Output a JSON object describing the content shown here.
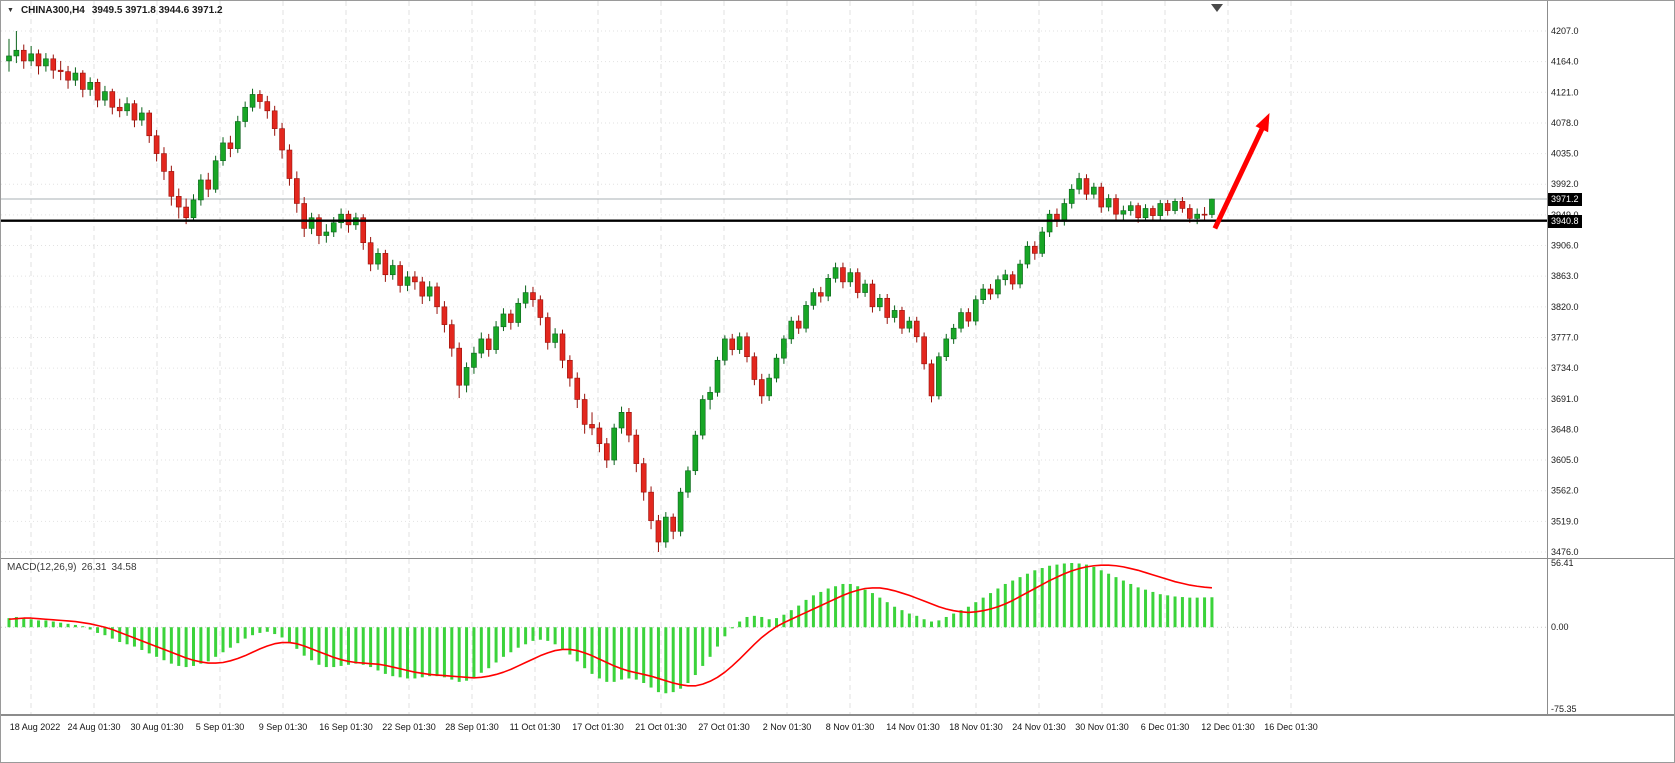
{
  "header": {
    "collapse_marker": "▼",
    "symbol_label": "CHINA300,H4",
    "ohlc_text": "3949.5 3971.8 3944.6 3971.2"
  },
  "colors": {
    "bull": "#18a626",
    "bear": "#e3271e",
    "bull_edge": "#0b631b",
    "bear_edge": "#971009",
    "macd_hist": "#3bd33b",
    "macd_signal": "#ff0000",
    "arrow": "#ff0000",
    "hline_black": "#000000",
    "hline_gray": "#a9b0b6",
    "grid": "#e2e2e2",
    "axis_text": "#1a1a1a",
    "tag_bg": "#000000",
    "tag_text": "#ffffff"
  },
  "chart_data": {
    "type": "candlestick",
    "symbol": "CHINA300",
    "timeframe": "H4",
    "ylim": [
      3476.0,
      4207.0
    ],
    "y_ticks": [
      4207.0,
      4164.0,
      4121.0,
      4078.0,
      4035.0,
      3992.0,
      3949.0,
      3906.0,
      3863.0,
      3820.0,
      3777.0,
      3734.0,
      3691.0,
      3648.0,
      3605.0,
      3562.0,
      3519.0,
      3476.0
    ],
    "x_labels": [
      "18 Aug 2022",
      "24 Aug 01:30",
      "30 Aug 01:30",
      "5 Sep 01:30",
      "9 Sep 01:30",
      "16 Sep 01:30",
      "22 Sep 01:30",
      "28 Sep 01:30",
      "11 Oct 01:30",
      "17 Oct 01:30",
      "21 Oct 01:30",
      "27 Oct 01:30",
      "2 Nov 01:30",
      "8 Nov 01:30",
      "14 Nov 01:30",
      "18 Nov 01:30",
      "24 Nov 01:30",
      "30 Nov 01:30",
      "6 Dec 01:30",
      "12 Dec 01:30",
      "16 Dec 01:30"
    ],
    "price_lines": [
      {
        "price": 3971.2,
        "label": "3971.2",
        "style": "thin-gray"
      },
      {
        "price": 3940.8,
        "label": "3940.8",
        "style": "thick-black"
      }
    ],
    "annotation_arrow": {
      "from_bar": 163.4,
      "from_price": 3930,
      "to_bar": 170.8,
      "to_price": 4092,
      "color": "#ff0000"
    },
    "candles": [
      [
        4165,
        4196,
        4150,
        4172
      ],
      [
        4172,
        4207,
        4162,
        4180
      ],
      [
        4180,
        4188,
        4154,
        4165
      ],
      [
        4165,
        4186,
        4158,
        4175
      ],
      [
        4175,
        4181,
        4146,
        4158
      ],
      [
        4158,
        4176,
        4150,
        4168
      ],
      [
        4168,
        4174,
        4140,
        4152
      ],
      [
        4152,
        4165,
        4138,
        4150
      ],
      [
        4150,
        4158,
        4126,
        4138
      ],
      [
        4138,
        4156,
        4130,
        4148
      ],
      [
        4148,
        4152,
        4114,
        4125
      ],
      [
        4125,
        4142,
        4116,
        4135
      ],
      [
        4135,
        4140,
        4100,
        4110
      ],
      [
        4110,
        4130,
        4102,
        4122
      ],
      [
        4122,
        4126,
        4090,
        4100
      ],
      [
        4100,
        4112,
        4086,
        4095
      ],
      [
        4095,
        4114,
        4088,
        4105
      ],
      [
        4105,
        4110,
        4072,
        4082
      ],
      [
        4082,
        4100,
        4074,
        4092
      ],
      [
        4092,
        4096,
        4050,
        4060
      ],
      [
        4060,
        4068,
        4024,
        4035
      ],
      [
        4035,
        4044,
        3998,
        4010
      ],
      [
        4010,
        4018,
        3962,
        3975
      ],
      [
        3975,
        3986,
        3944,
        3960
      ],
      [
        3960,
        3972,
        3936,
        3945
      ],
      [
        3945,
        3978,
        3940,
        3970
      ],
      [
        3970,
        4006,
        3962,
        3998
      ],
      [
        3998,
        4008,
        3974,
        3985
      ],
      [
        3985,
        4032,
        3980,
        4025
      ],
      [
        4025,
        4058,
        4018,
        4050
      ],
      [
        4050,
        4060,
        4030,
        4042
      ],
      [
        4042,
        4088,
        4036,
        4080
      ],
      [
        4080,
        4108,
        4072,
        4100
      ],
      [
        4100,
        4126,
        4094,
        4118
      ],
      [
        4118,
        4124,
        4098,
        4108
      ],
      [
        4108,
        4116,
        4084,
        4095
      ],
      [
        4095,
        4102,
        4060,
        4070
      ],
      [
        4070,
        4078,
        4028,
        4040
      ],
      [
        4040,
        4048,
        3990,
        4000
      ],
      [
        4000,
        4010,
        3952,
        3965
      ],
      [
        3965,
        3974,
        3918,
        3930
      ],
      [
        3930,
        3952,
        3922,
        3945
      ],
      [
        3945,
        3950,
        3908,
        3920
      ],
      [
        3920,
        3936,
        3910,
        3925
      ],
      [
        3925,
        3946,
        3918,
        3938
      ],
      [
        3938,
        3958,
        3930,
        3950
      ],
      [
        3950,
        3955,
        3924,
        3935
      ],
      [
        3935,
        3952,
        3928,
        3945
      ],
      [
        3945,
        3950,
        3900,
        3910
      ],
      [
        3910,
        3918,
        3870,
        3880
      ],
      [
        3880,
        3902,
        3872,
        3895
      ],
      [
        3895,
        3900,
        3855,
        3865
      ],
      [
        3865,
        3886,
        3858,
        3878
      ],
      [
        3878,
        3884,
        3840,
        3850
      ],
      [
        3850,
        3870,
        3842,
        3862
      ],
      [
        3862,
        3870,
        3844,
        3855
      ],
      [
        3855,
        3862,
        3824,
        3835
      ],
      [
        3835,
        3856,
        3828,
        3848
      ],
      [
        3848,
        3854,
        3810,
        3820
      ],
      [
        3820,
        3828,
        3784,
        3795
      ],
      [
        3795,
        3802,
        3750,
        3762
      ],
      [
        3762,
        3770,
        3692,
        3710
      ],
      [
        3710,
        3742,
        3700,
        3735
      ],
      [
        3735,
        3764,
        3726,
        3755
      ],
      [
        3755,
        3784,
        3748,
        3775
      ],
      [
        3775,
        3782,
        3750,
        3760
      ],
      [
        3760,
        3800,
        3754,
        3792
      ],
      [
        3792,
        3818,
        3786,
        3810
      ],
      [
        3810,
        3816,
        3788,
        3798
      ],
      [
        3798,
        3832,
        3792,
        3825
      ],
      [
        3825,
        3850,
        3818,
        3840
      ],
      [
        3840,
        3848,
        3820,
        3830
      ],
      [
        3830,
        3836,
        3794,
        3805
      ],
      [
        3805,
        3812,
        3760,
        3770
      ],
      [
        3770,
        3790,
        3762,
        3782
      ],
      [
        3782,
        3788,
        3734,
        3745
      ],
      [
        3745,
        3752,
        3708,
        3720
      ],
      [
        3720,
        3728,
        3678,
        3690
      ],
      [
        3690,
        3698,
        3642,
        3655
      ],
      [
        3655,
        3672,
        3640,
        3650
      ],
      [
        3650,
        3658,
        3616,
        3628
      ],
      [
        3628,
        3636,
        3594,
        3605
      ],
      [
        3605,
        3656,
        3598,
        3650
      ],
      [
        3650,
        3680,
        3642,
        3672
      ],
      [
        3672,
        3678,
        3630,
        3640
      ],
      [
        3640,
        3648,
        3588,
        3600
      ],
      [
        3600,
        3608,
        3548,
        3560
      ],
      [
        3560,
        3568,
        3508,
        3520
      ],
      [
        3520,
        3528,
        3476,
        3490
      ],
      [
        3490,
        3532,
        3482,
        3525
      ],
      [
        3525,
        3530,
        3494,
        3505
      ],
      [
        3505,
        3566,
        3498,
        3560
      ],
      [
        3560,
        3596,
        3552,
        3590
      ],
      [
        3590,
        3646,
        3584,
        3640
      ],
      [
        3640,
        3696,
        3634,
        3690
      ],
      [
        3690,
        3708,
        3676,
        3700
      ],
      [
        3700,
        3750,
        3694,
        3745
      ],
      [
        3745,
        3780,
        3738,
        3775
      ],
      [
        3775,
        3782,
        3752,
        3760
      ],
      [
        3760,
        3784,
        3754,
        3778
      ],
      [
        3778,
        3784,
        3742,
        3750
      ],
      [
        3750,
        3756,
        3710,
        3718
      ],
      [
        3718,
        3726,
        3684,
        3695
      ],
      [
        3695,
        3726,
        3688,
        3720
      ],
      [
        3720,
        3754,
        3714,
        3748
      ],
      [
        3748,
        3780,
        3740,
        3775
      ],
      [
        3775,
        3806,
        3768,
        3800
      ],
      [
        3800,
        3808,
        3782,
        3790
      ],
      [
        3790,
        3828,
        3784,
        3822
      ],
      [
        3822,
        3846,
        3816,
        3840
      ],
      [
        3840,
        3848,
        3826,
        3835
      ],
      [
        3835,
        3866,
        3828,
        3860
      ],
      [
        3860,
        3882,
        3854,
        3875
      ],
      [
        3875,
        3882,
        3846,
        3855
      ],
      [
        3855,
        3874,
        3848,
        3868
      ],
      [
        3868,
        3874,
        3832,
        3840
      ],
      [
        3840,
        3858,
        3834,
        3852
      ],
      [
        3852,
        3858,
        3812,
        3820
      ],
      [
        3820,
        3838,
        3814,
        3832
      ],
      [
        3832,
        3838,
        3796,
        3805
      ],
      [
        3805,
        3822,
        3798,
        3815
      ],
      [
        3815,
        3820,
        3782,
        3790
      ],
      [
        3790,
        3806,
        3784,
        3800
      ],
      [
        3800,
        3806,
        3770,
        3778
      ],
      [
        3778,
        3784,
        3732,
        3740
      ],
      [
        3740,
        3746,
        3686,
        3695
      ],
      [
        3695,
        3756,
        3690,
        3750
      ],
      [
        3750,
        3782,
        3744,
        3775
      ],
      [
        3775,
        3796,
        3768,
        3790
      ],
      [
        3790,
        3818,
        3784,
        3812
      ],
      [
        3812,
        3818,
        3792,
        3800
      ],
      [
        3800,
        3836,
        3794,
        3830
      ],
      [
        3830,
        3852,
        3824,
        3845
      ],
      [
        3845,
        3852,
        3830,
        3838
      ],
      [
        3838,
        3864,
        3832,
        3858
      ],
      [
        3858,
        3872,
        3850,
        3865
      ],
      [
        3865,
        3870,
        3844,
        3852
      ],
      [
        3852,
        3886,
        3846,
        3880
      ],
      [
        3880,
        3912,
        3874,
        3905
      ],
      [
        3905,
        3912,
        3886,
        3895
      ],
      [
        3895,
        3932,
        3890,
        3925
      ],
      [
        3925,
        3956,
        3918,
        3950
      ],
      [
        3950,
        3958,
        3932,
        3940
      ],
      [
        3940,
        3972,
        3934,
        3965
      ],
      [
        3965,
        3992,
        3958,
        3985
      ],
      [
        3985,
        4008,
        3978,
        4000
      ],
      [
        4000,
        4006,
        3970,
        3978
      ],
      [
        3978,
        3994,
        3972,
        3988
      ],
      [
        3988,
        3994,
        3952,
        3960
      ],
      [
        3960,
        3978,
        3954,
        3972
      ],
      [
        3972,
        3978,
        3942,
        3950
      ],
      [
        3950,
        3962,
        3942,
        3955
      ],
      [
        3955,
        3968,
        3948,
        3962
      ],
      [
        3962,
        3966,
        3938,
        3945
      ],
      [
        3945,
        3964,
        3940,
        3958
      ],
      [
        3958,
        3962,
        3940,
        3948
      ],
      [
        3948,
        3970,
        3942,
        3965
      ],
      [
        3965,
        3970,
        3948,
        3955
      ],
      [
        3955,
        3972,
        3950,
        3968
      ],
      [
        3968,
        3974,
        3952,
        3958
      ],
      [
        3958,
        3964,
        3938,
        3944
      ],
      [
        3944,
        3958,
        3936,
        3950
      ],
      [
        3950,
        3960,
        3942,
        3949.5
      ],
      [
        3949.5,
        3971.8,
        3944.6,
        3971.2
      ]
    ],
    "macd": {
      "label": "MACD(12,26,9)",
      "main_value": "26.31",
      "signal_value": "34.58",
      "scale_max": 56.41,
      "scale_min": -75.35,
      "y_ticks": [
        {
          "value": 56.41,
          "label": "56.41"
        },
        {
          "value": 0,
          "label": "0.00"
        },
        {
          "value": -75.35,
          "label": "-75.35"
        }
      ],
      "main": [
        8,
        9,
        8,
        7,
        6,
        6,
        5,
        4,
        3,
        2,
        0,
        -2,
        -5,
        -7,
        -10,
        -13,
        -15,
        -17,
        -20,
        -23,
        -26,
        -29,
        -32,
        -34,
        -35,
        -34,
        -32,
        -30,
        -26,
        -22,
        -18,
        -14,
        -10,
        -7,
        -5,
        -4,
        -6,
        -9,
        -14,
        -19,
        -25,
        -29,
        -33,
        -35,
        -35,
        -34,
        -33,
        -32,
        -33,
        -35,
        -38,
        -41,
        -43,
        -44,
        -45,
        -45,
        -44,
        -43,
        -43,
        -44,
        -46,
        -48,
        -47,
        -44,
        -40,
        -36,
        -31,
        -26,
        -22,
        -18,
        -15,
        -12,
        -11,
        -12,
        -15,
        -19,
        -24,
        -30,
        -36,
        -41,
        -45,
        -48,
        -48,
        -46,
        -45,
        -46,
        -49,
        -53,
        -57,
        -58,
        -57,
        -54,
        -49,
        -42,
        -34,
        -26,
        -17,
        -8,
        -1,
        5,
        9,
        10,
        9,
        7,
        8,
        11,
        15,
        19,
        24,
        28,
        31,
        34,
        36,
        38,
        38,
        36,
        33,
        30,
        26,
        22,
        18,
        15,
        12,
        10,
        7,
        5,
        6,
        9,
        12,
        15,
        18,
        22,
        26,
        30,
        34,
        38,
        41,
        44,
        47,
        50,
        52,
        54,
        55,
        56,
        56.41,
        56,
        55,
        53,
        50,
        47,
        44,
        41,
        38,
        35,
        33,
        31,
        29,
        28,
        27,
        26.5,
        26,
        26,
        26.2,
        26.31
      ],
      "signal": [
        7,
        7.5,
        8,
        8,
        7.5,
        7,
        6.5,
        6,
        5.5,
        5,
        4,
        3,
        1.5,
        0,
        -2,
        -4.5,
        -7,
        -9.5,
        -12,
        -14.5,
        -17,
        -19.5,
        -22,
        -24.5,
        -27,
        -29,
        -30.5,
        -31.5,
        -31.5,
        -31,
        -29.5,
        -27.5,
        -25,
        -22,
        -19,
        -16.5,
        -14.5,
        -13.5,
        -13.5,
        -14.5,
        -16.5,
        -19,
        -21.5,
        -24,
        -26.5,
        -28.5,
        -30,
        -31,
        -31.5,
        -32,
        -32.5,
        -33.5,
        -35,
        -36.5,
        -38,
        -39.5,
        -40.5,
        -41.5,
        -42,
        -42.5,
        -43,
        -43.5,
        -44,
        -44.5,
        -44,
        -43,
        -41.5,
        -39.5,
        -37,
        -34,
        -31,
        -28,
        -25,
        -22.5,
        -20.5,
        -19.5,
        -19.5,
        -20.5,
        -22.5,
        -25,
        -28,
        -31,
        -34,
        -36.5,
        -38.5,
        -40,
        -41.5,
        -43,
        -45,
        -47,
        -49,
        -50.5,
        -51.5,
        -51.5,
        -50,
        -47.5,
        -44,
        -39.5,
        -34,
        -28,
        -21.5,
        -15,
        -9,
        -4,
        0.5,
        4,
        7,
        10,
        13,
        16,
        19,
        22,
        25,
        28,
        30.5,
        32.5,
        34,
        34.5,
        34.5,
        33.5,
        32,
        30,
        28,
        25.5,
        23,
        20.5,
        18,
        16,
        14.5,
        13.5,
        13,
        13.5,
        14.5,
        16,
        18,
        20.5,
        23.5,
        27,
        30.5,
        34,
        37.5,
        41,
        44,
        47,
        49.5,
        51.5,
        53,
        54,
        54.5,
        54.5,
        54,
        53,
        51.5,
        50,
        48,
        46,
        44,
        42,
        40,
        38.5,
        37,
        36,
        35.2,
        34.58
      ]
    }
  }
}
